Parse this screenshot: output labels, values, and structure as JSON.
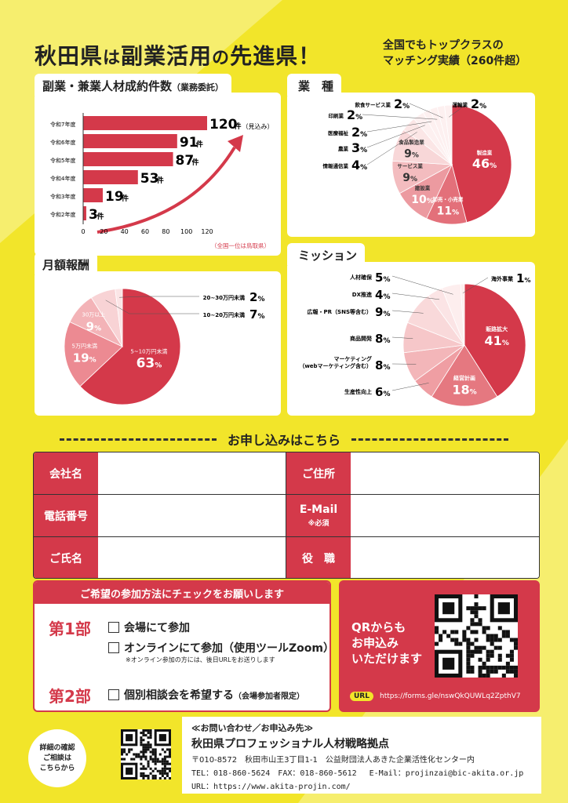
{
  "header": {
    "title_a": "秋田県",
    "title_b": "は",
    "title_c": "副業活用",
    "title_d": "の",
    "title_e": "先進県！",
    "sub_line1": "全国でもトップクラスの",
    "sub_line2": "マッチング実績（260件超）"
  },
  "contracts": {
    "tab_title": "副業・兼業人材成約件数",
    "tab_note": "（業務委託）",
    "footnote": "（全国一位は鳥取県）",
    "chart_data": {
      "type": "bar",
      "orientation": "horizontal",
      "categories": [
        "令和7年度",
        "令和6年度",
        "令和5年度",
        "令和4年度",
        "令和3年度",
        "令和2年度"
      ],
      "values": [
        120,
        91,
        87,
        53,
        19,
        3
      ],
      "value_labels": [
        "120",
        "91",
        "87",
        "53",
        "19",
        "3"
      ],
      "unit": "件",
      "first_note": "（見込み）",
      "xticks": [
        "0",
        "20",
        "40",
        "60",
        "80",
        "100",
        "120"
      ],
      "xlim": [
        0,
        120
      ],
      "color": "#d4394a"
    }
  },
  "industry": {
    "tab_title": "業　種",
    "chart_data": {
      "type": "pie",
      "slices": [
        {
          "label": "製造業",
          "value": 46,
          "color": "#d4394a",
          "inside": true
        },
        {
          "label": "卸売・小売業",
          "value": 11,
          "color": "#e3707a",
          "inside": true
        },
        {
          "label": "建設業",
          "value": 10,
          "color": "#ec9aa0",
          "inside": true
        },
        {
          "label": "サービス業",
          "value": 9,
          "color": "#f3bcbf",
          "inside": true
        },
        {
          "label": "食品製造業",
          "value": 9,
          "color": "#f8d7d8",
          "inside": true
        },
        {
          "label": "情報通信業",
          "value": 4,
          "color": "#fbe6e6",
          "inside": false
        },
        {
          "label": "農業",
          "value": 3,
          "color": "#fdf0f0",
          "inside": false
        },
        {
          "label": "医療福祉",
          "value": 2,
          "color": "#fdf0f0",
          "inside": false
        },
        {
          "label": "印刷業",
          "value": 2,
          "color": "#fdf0f0",
          "inside": false
        },
        {
          "label": "飲食サービス業",
          "value": 2,
          "color": "#fdf0f0",
          "inside": false
        },
        {
          "label": "運輸業",
          "value": 2,
          "color": "#fdf0f0",
          "inside": false
        }
      ],
      "unit": "%"
    }
  },
  "salary": {
    "tab_title": "月額報酬",
    "chart_data": {
      "type": "pie",
      "slices": [
        {
          "label": "5~10万円未満",
          "value": 63,
          "color": "#d4394a"
        },
        {
          "label": "5万円未満",
          "value": 19,
          "color": "#ec8a92"
        },
        {
          "label": "30万以上",
          "value": 9,
          "color": "#f3b3b7"
        },
        {
          "label": "10~20万円未満",
          "value": 7,
          "color": "#f8d3d5"
        },
        {
          "label": "20~30万円未満",
          "value": 2,
          "color": "#fbe5e6"
        }
      ],
      "unit": "%"
    }
  },
  "mission": {
    "tab_title": "ミッション",
    "chart_data": {
      "type": "pie",
      "slices": [
        {
          "label": "販路拡大",
          "value": 41,
          "color": "#d4394a"
        },
        {
          "label": "経営計画",
          "value": 18,
          "color": "#e57880"
        },
        {
          "label": "生産性向上",
          "value": 6,
          "color": "#ef9ea3"
        },
        {
          "label": "マーケティング（webマーケティング含む）",
          "value": 8,
          "color": "#f3b6b9"
        },
        {
          "label": "商品開発",
          "value": 8,
          "color": "#f6c7c9"
        },
        {
          "label": "広報・PR（SNS等含む）",
          "value": 9,
          "color": "#f9d9da"
        },
        {
          "label": "DX推進",
          "value": 4,
          "color": "#fbe4e5"
        },
        {
          "label": "人材確保",
          "value": 5,
          "color": "#fdeeee"
        },
        {
          "label": "海外事業",
          "value": 1,
          "color": "#fdeeee"
        }
      ],
      "unit": "%"
    }
  },
  "apply": {
    "heading": "お申し込みはこちら",
    "fields": {
      "company": "会社名",
      "address": "ご住所",
      "phone": "電話番号",
      "email": "E-Mail",
      "email_note": "※必須",
      "name": "ご氏名",
      "position": "役　職"
    }
  },
  "method": {
    "heading": "ご希望の参加方法にチェックをお願いします",
    "part1": "第1部",
    "part2": "第2部",
    "opt_venue": "会場にて参加",
    "opt_online": "オンラインにて参加（使用ツールZoom）",
    "opt_online_note": "※オンライン参加の方には、後日URLをお送りします",
    "opt_consult": "個別相談会を希望する",
    "opt_consult_note": "（会場参加者限定）"
  },
  "qr": {
    "line1": "QRからも",
    "line2": "お申込み",
    "line3": "いただけます",
    "url_badge": "URL",
    "url": "https://forms.gle/nswQkQUWLq2ZpthV7"
  },
  "footer": {
    "detail_1": "詳細の確認",
    "detail_2": "ご相談は",
    "detail_3": "こちらから",
    "contact_title": "≪お問い合わせ／お申込み先≫",
    "org": "秋田県プロフェッショナル人材戦略拠点",
    "addr": "〒010-8572　秋田市山王3丁目1-1　公益財団法人あきた企業活性化センター内",
    "tel": "TEL：018-860-5624　FAX：018-860-5612　 E-Mail：projinzai@bic-akita.or.jp",
    "url": "URL：https://www.akita-projin.com/"
  }
}
